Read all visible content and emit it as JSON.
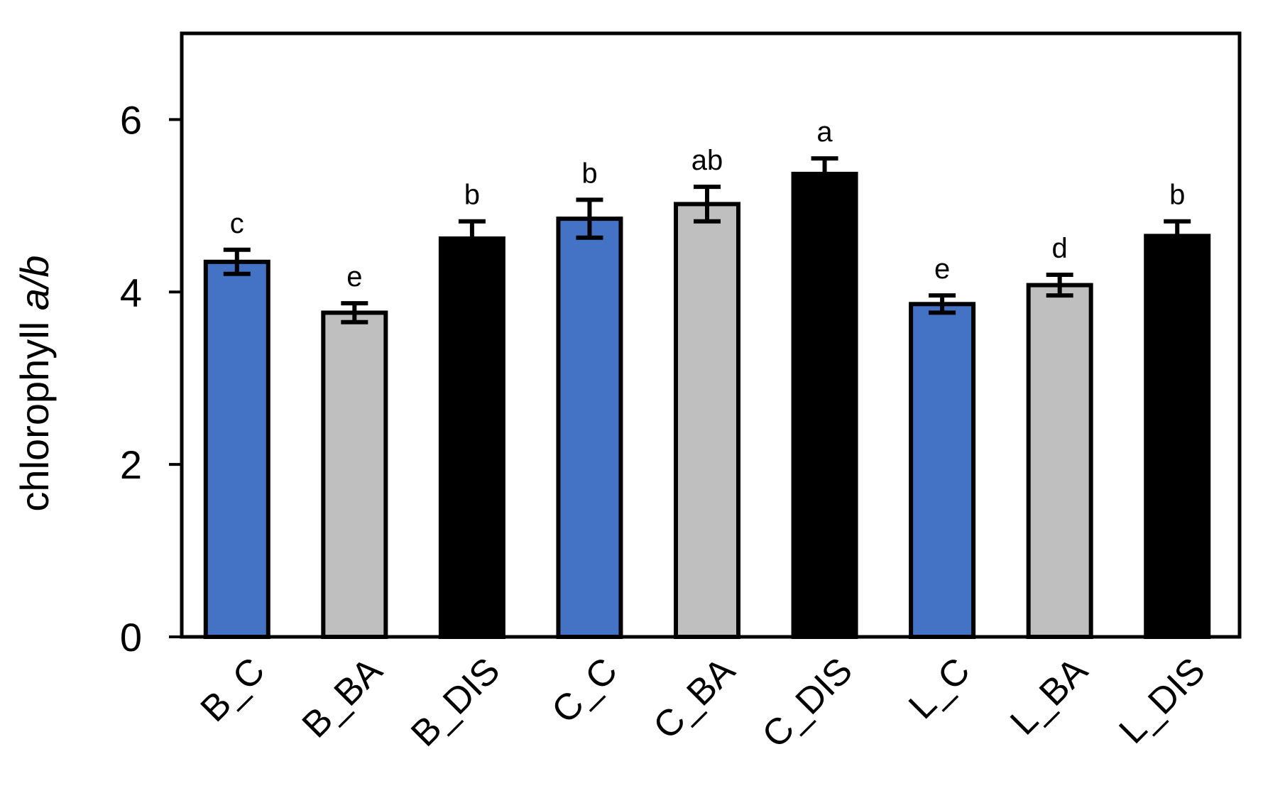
{
  "chart_data": {
    "type": "bar",
    "title": "",
    "ylabel_prefix": "chlorophyll ",
    "ylabel_italic": "a/b",
    "xlabel": "",
    "ylim": [
      0,
      7
    ],
    "yticks": [
      0,
      2,
      4,
      6
    ],
    "grid": false,
    "categories": [
      "B_C",
      "B_BA",
      "B_DIS",
      "C_C",
      "C_BA",
      "C_DIS",
      "L_C",
      "L_BA",
      "L_DIS"
    ],
    "values": [
      4.35,
      3.76,
      4.62,
      4.85,
      5.02,
      5.37,
      3.86,
      4.08,
      4.65
    ],
    "errors": [
      0.14,
      0.11,
      0.2,
      0.22,
      0.2,
      0.18,
      0.1,
      0.12,
      0.17
    ],
    "error_style": [
      "both",
      "both",
      "upper",
      "both",
      "both",
      "upper",
      "both",
      "both",
      "upper"
    ],
    "letters": [
      "c",
      "e",
      "b",
      "b",
      "ab",
      "a",
      "e",
      "d",
      "b"
    ],
    "colors": [
      "#4472C4",
      "#BFBFBF",
      "#000000",
      "#4472C4",
      "#BFBFBF",
      "#000000",
      "#4472C4",
      "#BFBFBF",
      "#000000"
    ]
  }
}
